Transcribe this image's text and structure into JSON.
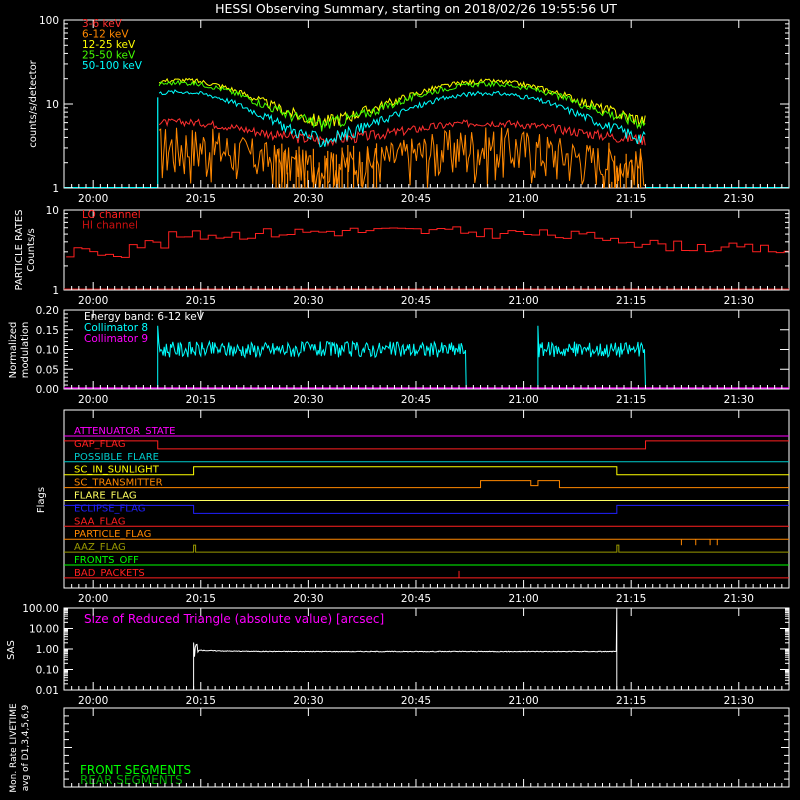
{
  "title": "HESSI Observing Summary, starting on 2018/02/26 19:55:56 UT",
  "time_ticks": [
    "20:00",
    "20:15",
    "20:30",
    "20:45",
    "21:00",
    "21:15",
    "21:30"
  ],
  "colors": {
    "background": "#000000",
    "axis": "#ffffff",
    "band_3_6": "#ff3030",
    "band_6_12": "#ff8800",
    "band_12_25": "#ffff00",
    "band_25_50": "#44ff00",
    "band_50_100": "#00ffff",
    "particle_lo": "#ff2020",
    "particle_hi": "#cc1010",
    "coll8": "#00ffff",
    "coll9": "#ff00ff",
    "sas": "#ffffff",
    "front": "#00ff00",
    "rear": "#00aa00"
  },
  "panels": {
    "counts": {
      "ylabel": "counts/s/detector",
      "yticks": [
        "1",
        "10",
        "100"
      ]
    },
    "particle": {
      "ylabel_lines": [
        "PARTICLE RATES",
        "Counts/s"
      ],
      "yticks": [
        "1",
        "10"
      ]
    },
    "modulation": {
      "ylabel_lines": [
        "Normalized",
        "modulation"
      ],
      "yticks": [
        "0.00",
        "0.05",
        "0.10",
        "0.15",
        "0.20"
      ]
    },
    "flags": {
      "ylabel": "Flags"
    },
    "sas": {
      "ylabel": "SAS",
      "yticks": [
        "0.01",
        "0.10",
        "1.00",
        "10.00",
        "100.00"
      ]
    },
    "livetime": {
      "ylabel_lines": [
        "Mon. Rate LIVETIME",
        "avg of D1,3,4,5,6,9"
      ]
    }
  },
  "legends": {
    "counts": [
      "3-6 keV",
      "6-12 keV",
      "12-25 keV",
      "25-50 keV",
      "50-100 keV"
    ],
    "particle": [
      "LO channel",
      "HI channel"
    ],
    "modulation": [
      "Energy band: 6-12 keV",
      "Collimator 8",
      "Collimator 9"
    ],
    "sas": "Size of Reduced Triangle (absolute value) [arcsec]",
    "livetime": [
      "FRONT SEGMENTS",
      "REAR SEGMENTS"
    ]
  },
  "flags": [
    {
      "name": "ATTENUATOR_STATE",
      "color": "#ff00ff"
    },
    {
      "name": "GAP_FLAG",
      "color": "#ff2020"
    },
    {
      "name": "POSSIBLE_FLARE",
      "color": "#00cccc"
    },
    {
      "name": "SC_IN_SUNLIGHT",
      "color": "#ffff00"
    },
    {
      "name": "SC_TRANSMITTER",
      "color": "#ff8800"
    },
    {
      "name": "FLARE_FLAG",
      "color": "#ffff60"
    },
    {
      "name": "ECLIPSE_FLAG",
      "color": "#2020ff"
    },
    {
      "name": "SAA_FLAG",
      "color": "#ff2020"
    },
    {
      "name": "PARTICLE_FLAG",
      "color": "#ff8800"
    },
    {
      "name": "AAZ_FLAG",
      "color": "#999900"
    },
    {
      "name": "FRONTS_OFF",
      "color": "#00ff00"
    },
    {
      "name": "BAD_PACKETS",
      "color": "#ff2020"
    }
  ],
  "chart_data": [
    {
      "type": "line",
      "panel": "counts",
      "ylog": true,
      "ylim": [
        1,
        100
      ],
      "data_window": [
        "20:09",
        "21:17"
      ],
      "series": [
        {
          "name": "3-6 keV",
          "approx_range": [
            3,
            6
          ]
        },
        {
          "name": "6-12 keV",
          "approx_range": [
            1,
            5
          ]
        },
        {
          "name": "12-25 keV",
          "approx_range": [
            5,
            20
          ]
        },
        {
          "name": "25-50 keV",
          "approx_range": [
            5,
            20
          ]
        },
        {
          "name": "50-100 keV",
          "approx_range": [
            2,
            14
          ]
        }
      ]
    },
    {
      "type": "line",
      "panel": "particle",
      "ylog": true,
      "ylim": [
        1,
        10
      ],
      "series": [
        {
          "name": "LO channel",
          "approx_range": [
            2.5,
            6
          ]
        },
        {
          "name": "HI channel",
          "approx_range": [
            1,
            1
          ]
        }
      ]
    },
    {
      "type": "line",
      "panel": "modulation",
      "ylim": [
        0.0,
        0.2
      ],
      "series": [
        {
          "name": "Collimator 8",
          "approx_level": 0.1,
          "segments": [
            [
              "20:09",
              "20:52"
            ],
            [
              "21:02",
              "21:17"
            ]
          ]
        },
        {
          "name": "Collimator 9",
          "approx_level": 0.0
        }
      ]
    },
    {
      "type": "line",
      "panel": "sas",
      "ylog": true,
      "ylim": [
        0.01,
        100
      ],
      "series": [
        {
          "name": "Size of Reduced Triangle",
          "approx_level": 0.8,
          "window": [
            "20:14",
            "21:13"
          ]
        }
      ]
    }
  ]
}
